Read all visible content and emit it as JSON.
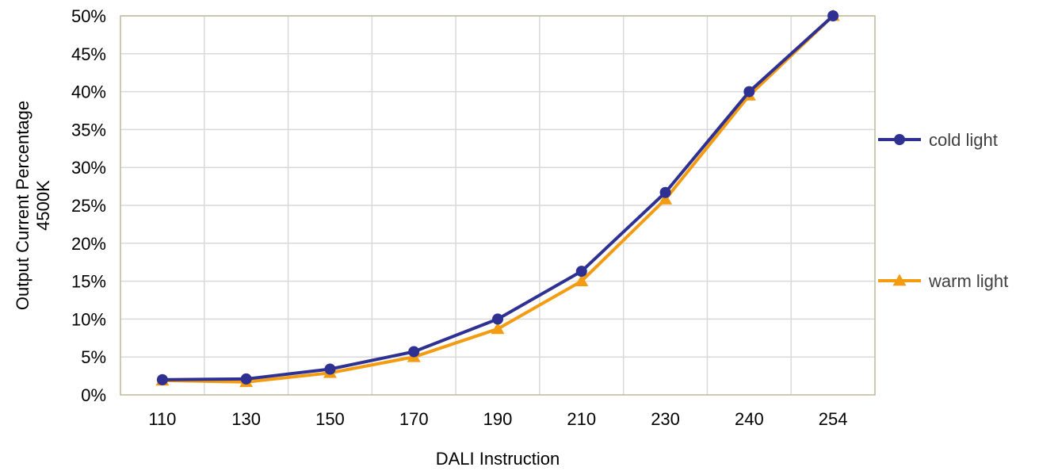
{
  "chart_data": {
    "type": "line",
    "categories": [
      "110",
      "130",
      "150",
      "170",
      "190",
      "210",
      "230",
      "240",
      "254"
    ],
    "series": [
      {
        "name": "cold light",
        "values": [
          2.0,
          2.1,
          3.4,
          5.7,
          10.0,
          16.3,
          26.7,
          40.0,
          50.0
        ],
        "color": "#2E3192",
        "marker": "circle"
      },
      {
        "name": "warm light",
        "values": [
          1.9,
          1.7,
          2.9,
          5.0,
          8.7,
          15.0,
          25.8,
          39.5,
          50.0
        ],
        "color": "#F39C12",
        "marker": "triangle"
      }
    ],
    "xlabel": "DALI Instruction",
    "ylabel_lines": [
      "Output Current Percentage",
      "4500K"
    ],
    "ylim": [
      0,
      50
    ],
    "yticks": [
      0,
      5,
      10,
      15,
      20,
      25,
      30,
      35,
      40,
      45,
      50
    ],
    "ytick_labels": [
      "0%",
      "5%",
      "10%",
      "15%",
      "20%",
      "25%",
      "30%",
      "35%",
      "40%",
      "45%",
      "50%"
    ],
    "grid": true,
    "legend_position": "right",
    "colors": {
      "grid": "#D9D9D9",
      "plot_border": "#BFB89A"
    }
  }
}
